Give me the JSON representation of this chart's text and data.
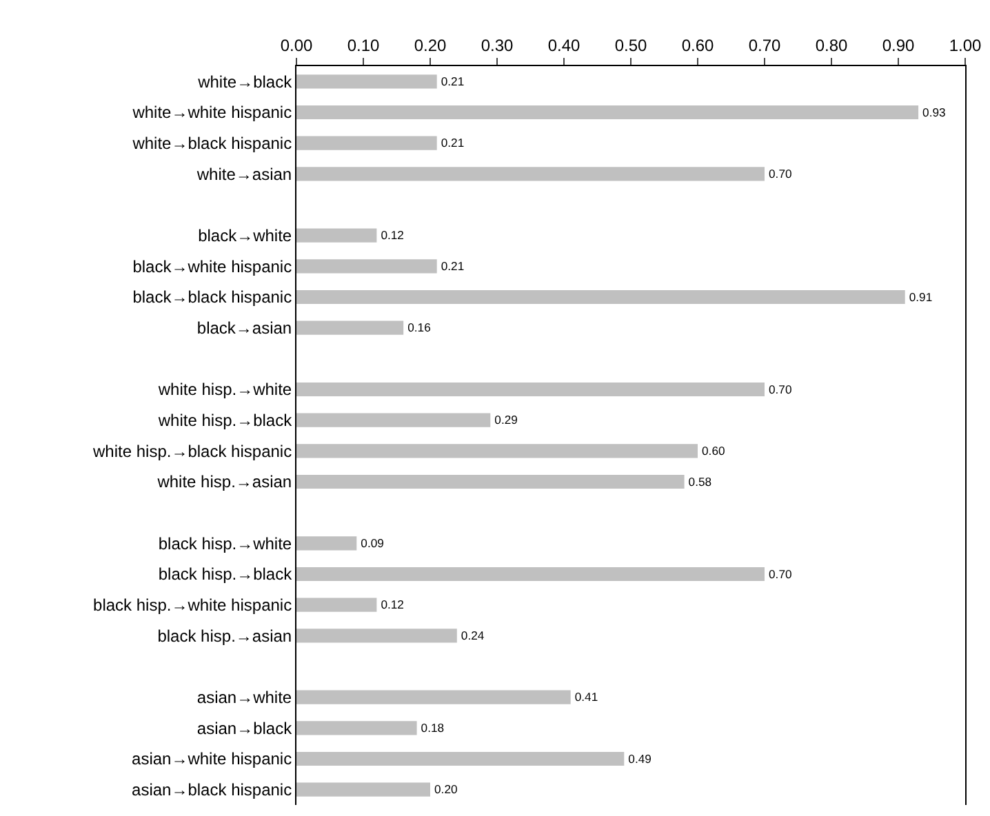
{
  "chart_data": {
    "type": "bar",
    "orientation": "horizontal",
    "color": "#c0c0c0",
    "value_labels": [
      "0.21",
      "0.93",
      "0.21",
      "0.70",
      null,
      "0.12",
      "0.21",
      "0.91",
      "0.16",
      null,
      "0.70",
      "0.29",
      "0.60",
      "0.58",
      null,
      "0.09",
      "0.70",
      "0.12",
      "0.24",
      null,
      "0.41",
      "0.18",
      "0.49",
      "0.20"
    ],
    "grid": false,
    "legend": false,
    "categories": [
      "white→black",
      "white→white hispanic",
      "white→black hispanic",
      "white→asian",
      null,
      "black→white",
      "black→white hispanic",
      "black→black hispanic",
      "black→asian",
      null,
      "white hisp.→white",
      "white hisp.→black",
      "white hisp.→black hispanic",
      "white hisp.→asian",
      null,
      "black hisp.→white",
      "black hisp.→black",
      "black hisp.→white hispanic",
      "black hisp.→asian",
      null,
      "asian→white",
      "asian→black",
      "asian→white hispanic",
      "asian→black hispanic"
    ],
    "values": [
      0.21,
      0.93,
      0.21,
      0.7,
      null,
      0.12,
      0.21,
      0.91,
      0.16,
      null,
      0.7,
      0.29,
      0.6,
      0.58,
      null,
      0.09,
      0.7,
      0.12,
      0.24,
      null,
      0.41,
      0.18,
      0.49,
      0.2
    ],
    "xlim": [
      0,
      1
    ],
    "xticks": [
      {
        "value": 0,
        "label": "0.00"
      },
      {
        "value": 0.1,
        "label": "0.10"
      },
      {
        "value": 0.2,
        "label": "0.20"
      },
      {
        "value": 0.3,
        "label": "0.30"
      },
      {
        "value": 0.4,
        "label": "0.40"
      },
      {
        "value": 0.5,
        "label": "0.50"
      },
      {
        "value": 0.6,
        "label": "0.60"
      },
      {
        "value": 0.7,
        "label": "0.70"
      },
      {
        "value": 0.8,
        "label": "0.80"
      },
      {
        "value": 0.9,
        "label": "0.90"
      },
      {
        "value": 1,
        "label": "1.00"
      }
    ]
  }
}
